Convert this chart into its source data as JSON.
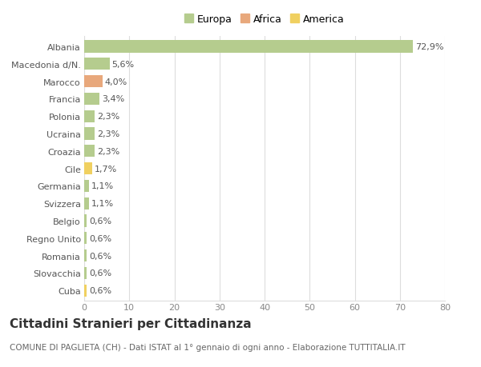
{
  "categories": [
    "Albania",
    "Macedonia d/N.",
    "Marocco",
    "Francia",
    "Polonia",
    "Ucraina",
    "Croazia",
    "Cile",
    "Germania",
    "Svizzera",
    "Belgio",
    "Regno Unito",
    "Romania",
    "Slovacchia",
    "Cuba"
  ],
  "values": [
    72.9,
    5.6,
    4.0,
    3.4,
    2.3,
    2.3,
    2.3,
    1.7,
    1.1,
    1.1,
    0.6,
    0.6,
    0.6,
    0.6,
    0.6
  ],
  "labels": [
    "72,9%",
    "5,6%",
    "4,0%",
    "3,4%",
    "2,3%",
    "2,3%",
    "2,3%",
    "1,7%",
    "1,1%",
    "1,1%",
    "0,6%",
    "0,6%",
    "0,6%",
    "0,6%",
    "0,6%"
  ],
  "colors": [
    "#b5cc8e",
    "#b5cc8e",
    "#e8a87c",
    "#b5cc8e",
    "#b5cc8e",
    "#b5cc8e",
    "#b5cc8e",
    "#f0d060",
    "#b5cc8e",
    "#b5cc8e",
    "#b5cc8e",
    "#b5cc8e",
    "#b5cc8e",
    "#b5cc8e",
    "#f0d060"
  ],
  "legend_labels": [
    "Europa",
    "Africa",
    "America"
  ],
  "legend_colors": [
    "#b5cc8e",
    "#e8a87c",
    "#f0d060"
  ],
  "title": "Cittadini Stranieri per Cittadinanza",
  "subtitle": "COMUNE DI PAGLIETA (CH) - Dati ISTAT al 1° gennaio di ogni anno - Elaborazione TUTTITALIA.IT",
  "xlim": [
    0,
    80
  ],
  "xticks": [
    0,
    10,
    20,
    30,
    40,
    50,
    60,
    70,
    80
  ],
  "bg_color": "#ffffff",
  "grid_color": "#dddddd",
  "bar_height": 0.7,
  "label_fontsize": 8,
  "tick_fontsize": 8,
  "ytick_fontsize": 8,
  "title_fontsize": 11,
  "subtitle_fontsize": 7.5,
  "legend_fontsize": 9
}
